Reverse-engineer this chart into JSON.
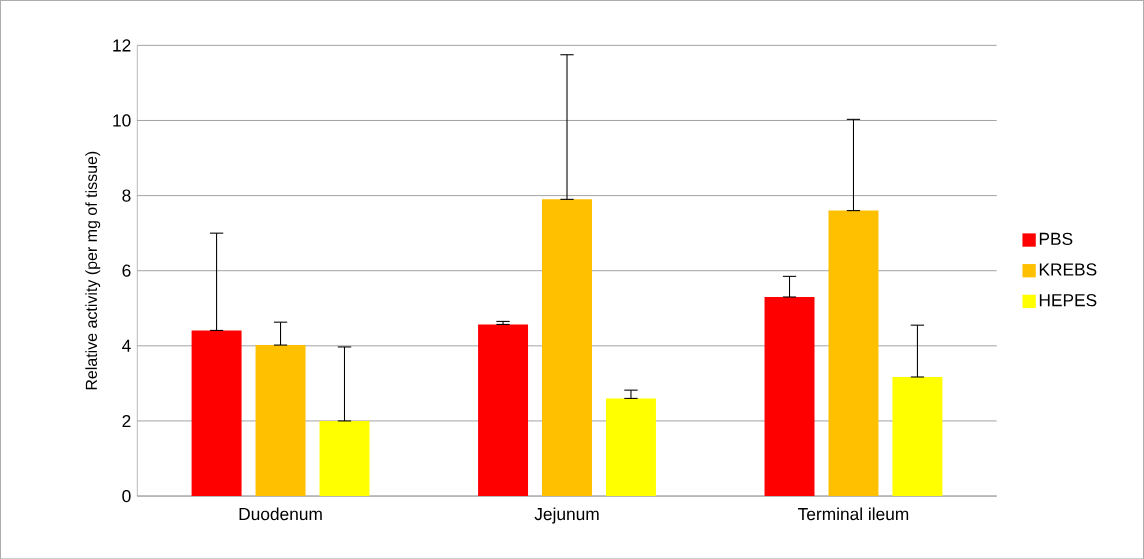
{
  "chart_data": {
    "type": "bar",
    "ylabel": "Relative activity (per mg of tissue)",
    "categories": [
      "Duodenum",
      "Jejunum",
      "Terminal ileum"
    ],
    "series": [
      {
        "name": "PBS",
        "color": "#ff0000",
        "values": [
          4.41,
          4.57,
          5.3
        ],
        "errors": [
          [
            4.41,
            7.0
          ],
          [
            4.57,
            4.65
          ],
          [
            5.3,
            5.85
          ]
        ]
      },
      {
        "name": "KREBS",
        "color": "#ffc000",
        "values": [
          4.02,
          7.9,
          7.6
        ],
        "errors": [
          [
            4.02,
            4.63
          ],
          [
            7.9,
            11.75
          ],
          [
            7.6,
            10.03
          ]
        ]
      },
      {
        "name": "HEPES",
        "color": "#ffff00",
        "values": [
          2.0,
          2.6,
          3.17
        ],
        "errors": [
          [
            2.0,
            3.97
          ],
          [
            2.6,
            2.82
          ],
          [
            3.17,
            4.55
          ]
        ]
      }
    ],
    "ylim": [
      0,
      12
    ],
    "yticks": [
      0,
      2,
      4,
      6,
      8,
      10,
      12
    ],
    "grid": "y",
    "legend": "right"
  }
}
